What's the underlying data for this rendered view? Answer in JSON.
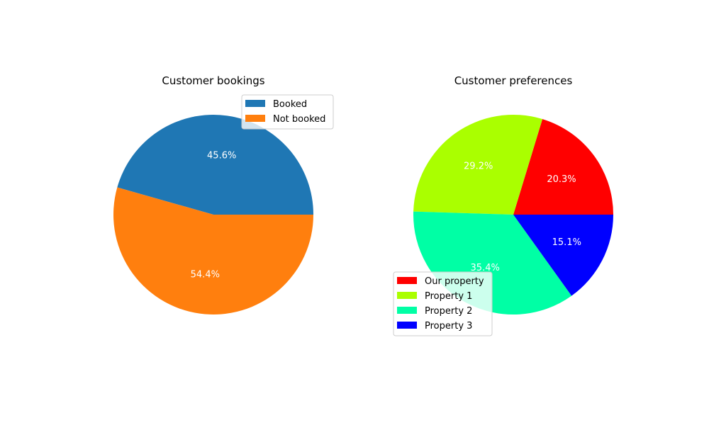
{
  "chart_data": [
    {
      "type": "pie",
      "title": "Customer bookings",
      "start_angle_deg": 0,
      "direction": "counterclockwise",
      "legend_placement": "upper-right",
      "slices": [
        {
          "label": "Booked",
          "value": 45.6,
          "pct_label": "45.6%",
          "color": "#1f77b4"
        },
        {
          "label": "Not booked",
          "value": 54.4,
          "pct_label": "54.4%",
          "color": "#ff7f0e"
        }
      ]
    },
    {
      "type": "pie",
      "title": "Customer preferences",
      "start_angle_deg": 0,
      "direction": "counterclockwise",
      "legend_placement": "lower-left",
      "slices": [
        {
          "label": "Our property",
          "value": 20.3,
          "pct_label": "20.3%",
          "color": "#ff0000"
        },
        {
          "label": "Property 1",
          "value": 29.2,
          "pct_label": "29.2%",
          "color": "#aaff00"
        },
        {
          "label": "Property 2",
          "value": 35.4,
          "pct_label": "35.4%",
          "color": "#00ffa5"
        },
        {
          "label": "Property 3",
          "value": 15.1,
          "pct_label": "15.1%",
          "color": "#0000ff"
        }
      ]
    }
  ]
}
